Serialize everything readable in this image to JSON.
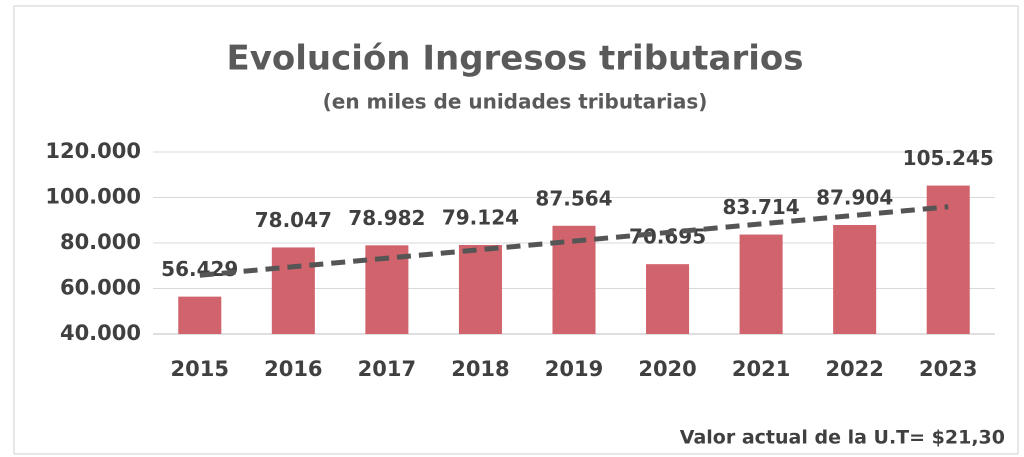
{
  "chart_data": {
    "type": "bar",
    "title": "Evolución Ingresos tributarios",
    "subtitle": "(en miles de unidades tributarias)",
    "annotation": "Valor actual de la U.T= $21,30",
    "categories": [
      "2015",
      "2016",
      "2017",
      "2018",
      "2019",
      "2020",
      "2021",
      "2022",
      "2023"
    ],
    "values": [
      56429,
      78047,
      78982,
      79124,
      87564,
      70695,
      83714,
      87904,
      105245
    ],
    "value_labels": [
      "56.429",
      "78.047",
      "78.982",
      "79.124",
      "87.564",
      "70.695",
      "83.714",
      "87.904",
      "105.245"
    ],
    "color": "#d0636b",
    "trendline_color": "#555555",
    "ylim": [
      40000,
      120000
    ],
    "yticks": [
      {
        "value": 40000,
        "label": "40.000"
      },
      {
        "value": 60000,
        "label": "60.000"
      },
      {
        "value": 80000,
        "label": "80.000"
      },
      {
        "value": 100000,
        "label": "100.000"
      },
      {
        "value": 120000,
        "label": "120.000"
      }
    ],
    "grid": true
  }
}
